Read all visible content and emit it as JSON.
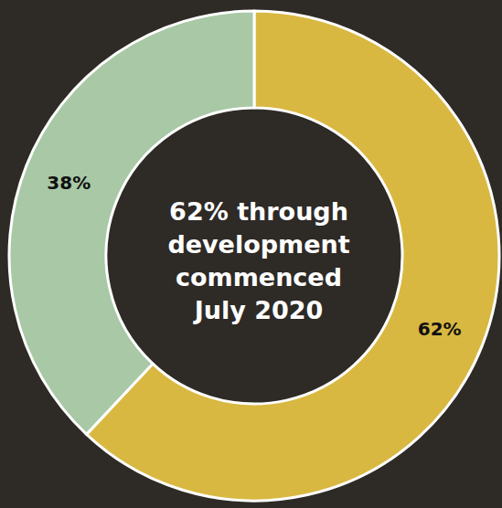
{
  "chart_data": {
    "type": "pie",
    "title": "62% through development commenced July 2020",
    "categories": [
      null,
      null
    ],
    "values": [
      62,
      38
    ],
    "value_labels": [
      "62%",
      "38%"
    ],
    "colors": [
      "#d9b842",
      "#a8c8a6"
    ],
    "data_labels": true
  }
}
